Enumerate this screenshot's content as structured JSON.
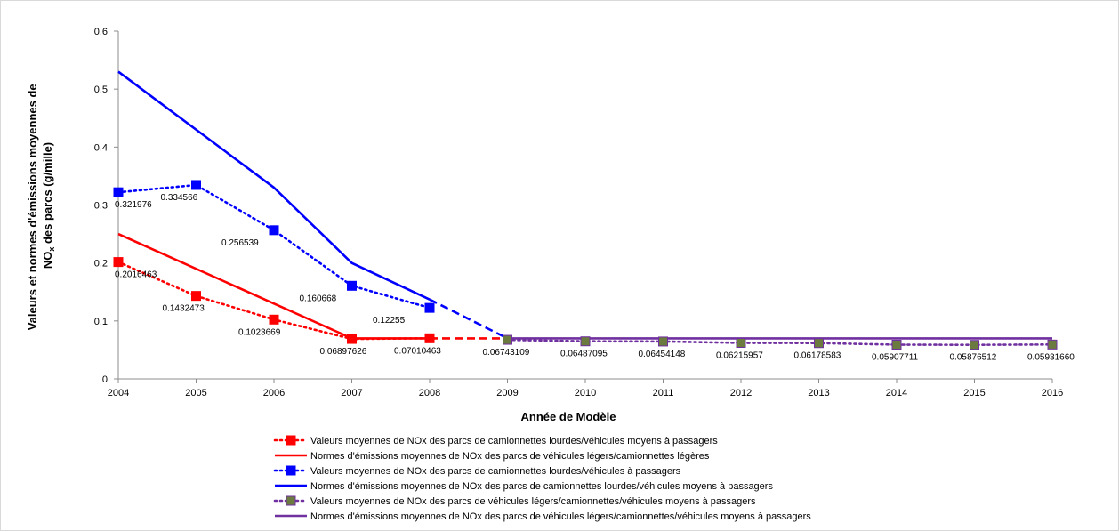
{
  "chart_data": {
    "type": "line",
    "title": "",
    "xlabel": "Année de Modèle",
    "ylabel": "Valeurs et normes d'émissions moyennes de NOx des parcs (g/mille)",
    "ylabel_parts": {
      "line1": "Valeurs et normes d'émissions moyennes de",
      "line2_pre": "NO",
      "line2_sub": "x",
      "line2_post": " des parcs (g/mille)"
    },
    "x": [
      2004,
      2005,
      2006,
      2007,
      2008,
      2009,
      2010,
      2011,
      2012,
      2013,
      2014,
      2015,
      2016
    ],
    "ylim": [
      0,
      0.6
    ],
    "yticks": [
      "0",
      "0.1",
      "0.2",
      "0.3",
      "0.4",
      "0.5",
      "0.6"
    ],
    "grid": false,
    "legend_position": "bottom",
    "series": [
      {
        "name": "Valeurs moyennes de NOx des parcs de camionnettes lourdes/véhicules moyens à passagers",
        "color": "#ff0000",
        "style": "dotted-marker",
        "points": [
          [
            2004,
            0.2016463
          ],
          [
            2005,
            0.1432473
          ],
          [
            2006,
            0.1023669
          ],
          [
            2007,
            0.06897626
          ],
          [
            2008,
            0.07010463
          ]
        ],
        "labels": [
          "0.2016463",
          "0.1432473",
          "0.1023669",
          "0.06897626",
          "0.07010463"
        ]
      },
      {
        "name": "Normes d'émissions moyennes de NOx des parcs de véhicules légers/camionnettes légères",
        "color": "#ff0000",
        "style": "solid",
        "points": [
          [
            2004,
            0.25
          ],
          [
            2007,
            0.07
          ],
          [
            2008,
            0.07
          ]
        ],
        "dashed_points": [
          [
            2008,
            0.07
          ],
          [
            2009,
            0.07
          ]
        ]
      },
      {
        "name": "Valeurs moyennes de NOx des parcs de camionnettes lourdes/véhicules à passagers",
        "color": "#0000ff",
        "style": "dotted-marker",
        "points": [
          [
            2004,
            0.321976
          ],
          [
            2005,
            0.334566
          ],
          [
            2006,
            0.256539
          ],
          [
            2007,
            0.160668
          ],
          [
            2008,
            0.12255
          ]
        ],
        "labels": [
          "0.321976",
          "0.334566",
          "0.256539",
          "0.160668",
          "0.12255"
        ]
      },
      {
        "name": "Normes d'émissions moyennes de NOx des parcs de camionnettes lourdes/véhicules moyens à passagers",
        "color": "#0000ff",
        "style": "solid",
        "points": [
          [
            2004,
            0.53
          ],
          [
            2006,
            0.33
          ],
          [
            2007,
            0.2
          ],
          [
            2008,
            0.137
          ]
        ],
        "dashed_points": [
          [
            2008,
            0.137
          ],
          [
            2009,
            0.07
          ]
        ]
      },
      {
        "name": "Valeurs moyennes de NOx des parcs de véhicules légers/camionnettes/véhicules moyens à passagers",
        "color": "#7030a0",
        "marker_color": "#6b7a3f",
        "style": "dotted-marker",
        "points": [
          [
            2009,
            0.06743109
          ],
          [
            2010,
            0.06487095
          ],
          [
            2011,
            0.06454148
          ],
          [
            2012,
            0.06215957
          ],
          [
            2013,
            0.06178583
          ],
          [
            2014,
            0.05907711
          ],
          [
            2015,
            0.05876512
          ],
          [
            2016,
            0.0593166
          ]
        ],
        "labels": [
          "0.06743109",
          "0.06487095",
          "0.06454148",
          "0.06215957",
          "0.06178583",
          "0.05907711",
          "0.05876512",
          "0.05931660"
        ]
      },
      {
        "name": "Normes d'émissions moyennes de NOx des parcs de véhicules légers/camionnettes/véhicules moyens à passagers",
        "color": "#7030a0",
        "style": "solid",
        "points": [
          [
            2009,
            0.07
          ],
          [
            2016,
            0.07
          ]
        ]
      }
    ]
  }
}
